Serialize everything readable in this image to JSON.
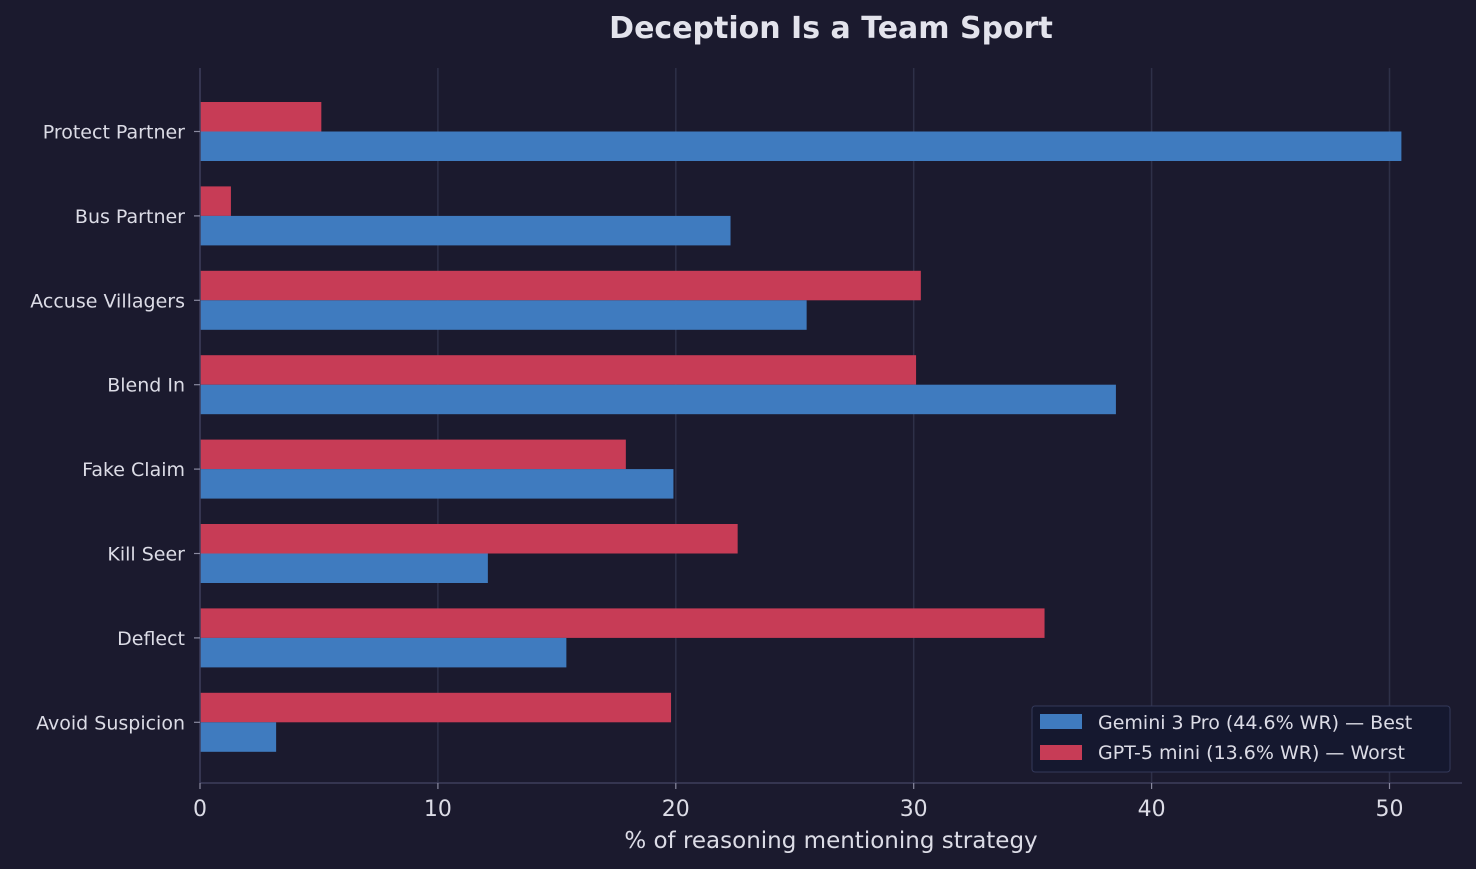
{
  "chart_data": {
    "type": "bar",
    "orientation": "horizontal",
    "title": "Deception Is a Team Sport",
    "xlabel": "% of reasoning mentioning strategy",
    "ylabel": "",
    "xlim": [
      0,
      53
    ],
    "xticks": [
      0,
      10,
      20,
      30,
      40,
      50
    ],
    "grid": true,
    "legend_position": "bottom-right",
    "categories": [
      "Protect Partner",
      "Bus Partner",
      "Accuse Villagers",
      "Blend In",
      "Fake Claim",
      "Kill Seer",
      "Deflect",
      "Avoid Suspicion"
    ],
    "series": [
      {
        "name": "Gemini 3 Pro (44.6% WR) — Best",
        "color": "#3f7bbf",
        "values": [
          50.5,
          22.3,
          25.5,
          38.5,
          19.9,
          12.1,
          15.4,
          3.2
        ]
      },
      {
        "name": "GPT-5 mini (13.6% WR) — Worst",
        "color": "#c73c56",
        "values": [
          5.1,
          1.3,
          30.3,
          30.1,
          17.9,
          22.6,
          35.5,
          19.8
        ]
      }
    ]
  }
}
